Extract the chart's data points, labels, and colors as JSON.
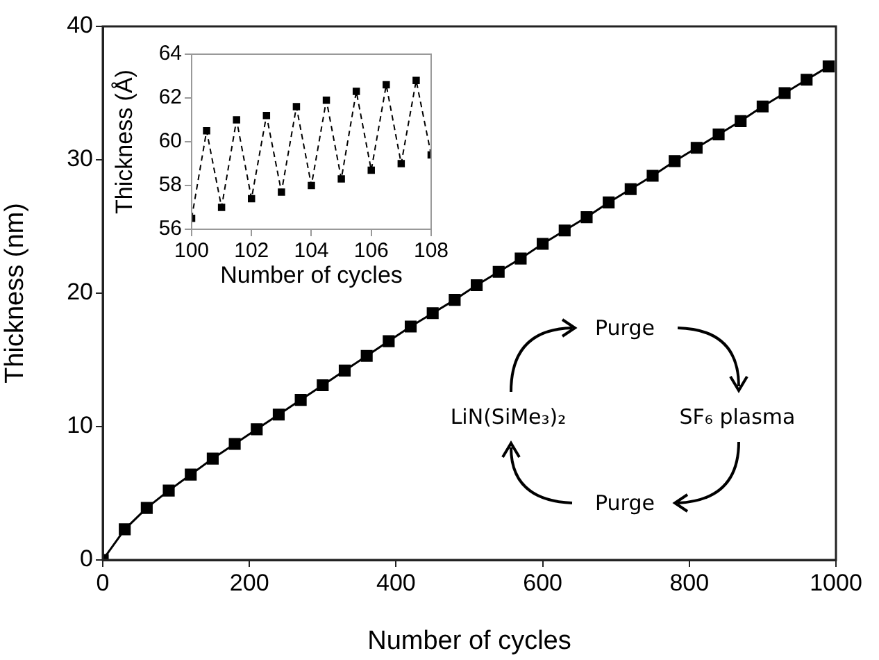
{
  "chart_data": [
    {
      "type": "line",
      "xlabel": "Number of cycles",
      "ylabel": "Thickness (nm)",
      "marker": "square",
      "line_style": "solid",
      "x": [
        0,
        30,
        60,
        90,
        120,
        150,
        180,
        210,
        240,
        270,
        300,
        330,
        360,
        390,
        420,
        450,
        480,
        510,
        540,
        570,
        600,
        630,
        660,
        690,
        720,
        750,
        780,
        810,
        840,
        870,
        900,
        930,
        960,
        990
      ],
      "series": [
        {
          "color": "#000000",
          "values": [
            0,
            2.3,
            3.9,
            5.2,
            6.4,
            7.6,
            8.7,
            9.8,
            10.9,
            12.0,
            13.1,
            14.2,
            15.3,
            16.4,
            17.5,
            18.5,
            19.5,
            20.6,
            21.6,
            22.6,
            23.7,
            24.7,
            25.7,
            26.8,
            27.8,
            28.8,
            29.9,
            30.9,
            31.9,
            32.9,
            34.0,
            35.0,
            36.0,
            37.0
          ]
        }
      ],
      "xlim": [
        0,
        1000
      ],
      "xticks": [
        0,
        200,
        400,
        600,
        800,
        1000
      ],
      "ylim": [
        0,
        40
      ],
      "yticks": [
        0,
        10,
        20,
        30,
        40
      ],
      "annotations": [
        "Purge",
        "SF₆ plasma",
        "Purge",
        "LiN(SiMe₃)₂"
      ]
    },
    {
      "type": "line",
      "xlabel": "Number of cycles",
      "ylabel": "Thickness (Å)",
      "marker": "square",
      "line_style": "dashed",
      "x": [
        100,
        100.5,
        101,
        101.5,
        102,
        102.5,
        103,
        103.5,
        104,
        104.5,
        105,
        105.5,
        106,
        106.5,
        107,
        107.5,
        108
      ],
      "series": [
        {
          "color": "#000000",
          "values": [
            56.5,
            60.5,
            57.0,
            61.0,
            57.4,
            61.2,
            57.7,
            61.6,
            58.0,
            61.9,
            58.3,
            62.3,
            58.7,
            62.6,
            59.0,
            62.8,
            59.4
          ]
        }
      ],
      "xlim": [
        100,
        108
      ],
      "xticks": [
        100,
        102,
        104,
        106,
        108
      ],
      "ylim": [
        56,
        64
      ],
      "yticks": [
        56,
        58,
        60,
        62,
        64
      ]
    }
  ]
}
